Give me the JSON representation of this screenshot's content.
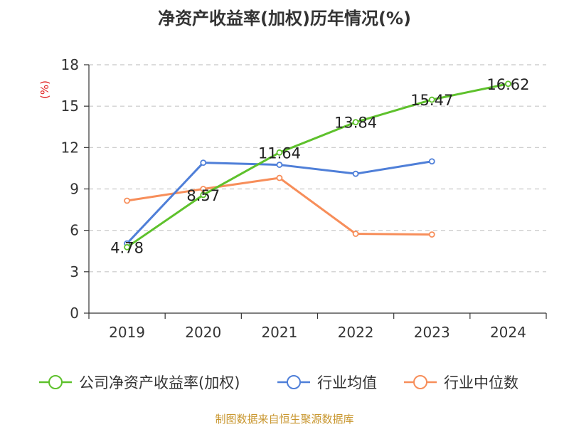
{
  "chart_data": {
    "type": "line",
    "title": "净资产收益率(加权)历年情况(%)",
    "ylabel": "(%)",
    "xlabel": "",
    "categories": [
      "2019",
      "2020",
      "2021",
      "2022",
      "2023",
      "2024"
    ],
    "ylim": [
      0,
      18
    ],
    "yticks": [
      0,
      3,
      6,
      9,
      12,
      15,
      18
    ],
    "grid": true,
    "legend_position": "bottom",
    "series": [
      {
        "name": "公司净资产收益率(加权)",
        "color": "#5ec12c",
        "values": [
          4.78,
          8.57,
          11.64,
          13.84,
          15.47,
          16.62
        ],
        "labels": [
          "4.78",
          "8.57",
          "11.64",
          "13.84",
          "15.47",
          "16.62"
        ]
      },
      {
        "name": "行业均值",
        "color": "#4f7fd8",
        "values": [
          5.05,
          10.9,
          10.75,
          10.1,
          11.0,
          null
        ]
      },
      {
        "name": "行业中位数",
        "color": "#f78e5a",
        "values": [
          8.15,
          9.0,
          9.8,
          5.75,
          5.7,
          null
        ]
      }
    ]
  },
  "footer": {
    "source": "制图数据来自恒生聚源数据库"
  }
}
